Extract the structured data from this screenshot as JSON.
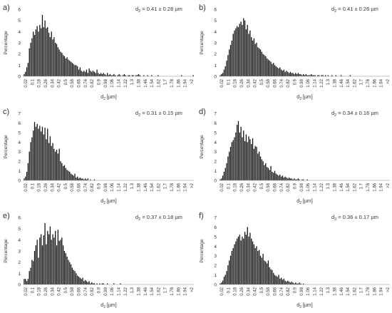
{
  "chart_data": [
    {
      "type": "bar",
      "panel_label": "a)",
      "stat_label": "d",
      "stat_sub": "2",
      "stat_value": " = 0.41 ± 0.28 µm",
      "xlabel_main": "d",
      "xlabel_sub": "2",
      "xlabel_unit": " [µm]",
      "ylabel": "Percentage",
      "ylim": [
        0,
        6
      ],
      "yticks": [
        "0",
        "1",
        "2",
        "3",
        "4",
        "5",
        "6"
      ],
      "xticks": [
        "0.02",
        "0.1",
        "0.18",
        "0.26",
        "0.34",
        "0.42",
        "0.5",
        "0.58",
        "0.66",
        "0.74",
        "0.82",
        "0.9",
        "0.98",
        "1.06",
        "1.14",
        "1.22",
        "1.3",
        "1.38",
        "1.46",
        "1.54",
        "1.62",
        "1.7",
        "1.78",
        "1.86",
        "1.94",
        ">2"
      ],
      "values": [
        0.2,
        0.4,
        0.8,
        1.2,
        2.5,
        3.0,
        3.4,
        4.0,
        3.7,
        4.2,
        4.5,
        4.0,
        4.6,
        4.3,
        5.5,
        4.4,
        5.0,
        4.3,
        4.4,
        3.9,
        3.5,
        4.0,
        3.3,
        3.5,
        3.0,
        2.9,
        2.6,
        2.4,
        2.2,
        2.1,
        1.9,
        1.8,
        1.6,
        1.7,
        1.5,
        1.4,
        1.3,
        1.2,
        1.1,
        1.0,
        1.0,
        0.9,
        0.6,
        0.8,
        0.5,
        0.4,
        0.5,
        0.4,
        0.6,
        0.3,
        0.7,
        0.5,
        0.4,
        0.5,
        0.4,
        0.3,
        0.6,
        0.3,
        0.2,
        0.3,
        0.2,
        0.3,
        0.2,
        0.1,
        0.3,
        0.1,
        0.2,
        0.1,
        0.1,
        0.2,
        0.1,
        0.0,
        0.1,
        0.2,
        0.1,
        0.0,
        0.1,
        0.2,
        0.1,
        0.0,
        0.1,
        0.1,
        0.0,
        0.1,
        0.1,
        0.0,
        0.1,
        0.1,
        0.2,
        0.1,
        0.0,
        0.0,
        0.1,
        0.0,
        0.0,
        0.1,
        0.0,
        0.0,
        0.1,
        0.0,
        0.0,
        0.0,
        0.0,
        0.1,
        0.0,
        0.0,
        0.0,
        0.0,
        0.0,
        0.0,
        0.0,
        0.0,
        0.0,
        0.0,
        0.0,
        0.0,
        0.0,
        0.0,
        0.0,
        0.0,
        0.0,
        0.1,
        0.0,
        0.0,
        0.0,
        0.0,
        0.0,
        0.0,
        0.0,
        0.0,
        0.1
      ]
    },
    {
      "type": "bar",
      "panel_label": "b)",
      "stat_label": "d",
      "stat_sub": "2",
      "stat_value": " = 0.41 ± 0.26 µm",
      "xlabel_main": "d",
      "xlabel_sub": "2",
      "xlabel_unit": " [µm]",
      "ylabel": "Percentage",
      "ylim": [
        0,
        6
      ],
      "yticks": [
        "0",
        "1",
        "2",
        "3",
        "4",
        "5",
        "6"
      ],
      "xticks": [
        "0.02",
        "0.1",
        "0.18",
        "0.26",
        "0.34",
        "0.42",
        "0.5",
        "0.58",
        "0.66",
        "0.74",
        "0.82",
        "0.9",
        "0.98",
        "1.06",
        "1.14",
        "1.22",
        "1.3",
        "1.38",
        "1.46",
        "1.54",
        "1.62",
        "1.7",
        "1.78",
        "1.86",
        "1.94",
        ">2"
      ],
      "values": [
        0.1,
        0.2,
        0.3,
        0.6,
        0.9,
        1.4,
        1.9,
        2.4,
        2.8,
        3.2,
        3.8,
        4.1,
        4.3,
        4.5,
        4.4,
        4.7,
        4.9,
        4.6,
        5.2,
        5.0,
        4.2,
        4.6,
        3.8,
        4.1,
        3.5,
        3.2,
        3.4,
        2.9,
        3.0,
        2.6,
        2.5,
        2.4,
        2.2,
        2.0,
        1.9,
        1.8,
        1.6,
        1.5,
        1.4,
        1.3,
        1.1,
        1.2,
        1.0,
        0.9,
        0.8,
        0.7,
        0.8,
        0.6,
        0.5,
        0.6,
        0.4,
        0.5,
        0.4,
        0.3,
        0.4,
        0.3,
        0.3,
        0.2,
        0.3,
        0.2,
        0.3,
        0.2,
        0.2,
        0.1,
        0.2,
        0.1,
        0.2,
        0.1,
        0.1,
        0.1,
        0.2,
        0.1,
        0.1,
        0.1,
        0.0,
        0.1,
        0.1,
        0.0,
        0.1,
        0.1,
        0.0,
        0.1,
        0.0,
        0.1,
        0.0,
        0.0,
        0.1,
        0.0,
        0.0,
        0.1,
        0.0,
        0.0,
        0.0,
        0.1,
        0.0,
        0.0,
        0.0,
        0.0,
        0.0,
        0.0,
        0.1,
        0.0,
        0.0,
        0.0,
        0.0,
        0.0,
        0.0,
        0.0,
        0.0,
        0.0,
        0.0,
        0.0,
        0.0,
        0.0,
        0.0,
        0.0,
        0.0,
        0.0,
        0.0,
        0.0,
        0.0,
        0.0,
        0.0,
        0.0,
        0.0,
        0.0,
        0.0,
        0.0,
        0.0,
        0.0,
        0.0
      ]
    },
    {
      "type": "bar",
      "panel_label": "c)",
      "stat_label": "d",
      "stat_sub": "2",
      "stat_value": " = 0.31 ± 0.15 µm",
      "xlabel_main": "d",
      "xlabel_sub": "2",
      "xlabel_unit": " [µm]",
      "ylabel": "Percentage",
      "ylim": [
        0,
        7
      ],
      "yticks": [
        "0",
        "1",
        "2",
        "3",
        "4",
        "5",
        "6",
        "7"
      ],
      "xticks": [
        "0.02",
        "0.1",
        "0.18",
        "0.26",
        "0.34",
        "0.42",
        "0.5",
        "0.58",
        "0.66",
        "0.74",
        "0.82",
        "0.9",
        "0.98",
        "1.06",
        "1.14",
        "1.22",
        "1.3",
        "1.38",
        "1.46",
        "1.54",
        "1.62",
        "1.7",
        "1.78",
        "1.86",
        "1.94",
        ">2"
      ],
      "values": [
        0.2,
        0.4,
        0.9,
        1.8,
        3.0,
        4.0,
        4.5,
        5.2,
        6.1,
        5.6,
        5.9,
        5.4,
        5.7,
        5.1,
        5.6,
        4.8,
        5.5,
        4.3,
        5.4,
        3.9,
        4.6,
        3.6,
        3.9,
        3.3,
        3.0,
        3.2,
        2.8,
        3.3,
        2.0,
        1.8,
        1.5,
        1.6,
        1.3,
        1.1,
        1.0,
        0.9,
        0.7,
        0.6,
        0.5,
        0.7,
        0.3,
        0.4,
        0.2,
        0.3,
        0.2,
        0.2,
        0.1,
        0.2,
        0.1,
        0.2,
        0.0,
        0.1,
        0.0,
        0.0,
        0.1,
        0.0,
        0.0,
        0.0,
        0.0,
        0.0,
        0.0,
        0.0,
        0.0,
        0.0,
        0.0,
        0.0,
        0.0,
        0.0,
        0.0,
        0.0,
        0.0,
        0.0,
        0.0,
        0.0,
        0.0,
        0.0,
        0.0,
        0.0,
        0.0,
        0.0,
        0.0,
        0.0,
        0.0,
        0.0,
        0.0,
        0.0,
        0.0,
        0.0,
        0.0,
        0.0,
        0.0,
        0.0,
        0.0,
        0.0,
        0.0,
        0.0,
        0.0,
        0.0,
        0.0,
        0.0,
        0.0,
        0.0,
        0.0,
        0.0,
        0.0,
        0.0,
        0.0,
        0.0,
        0.0,
        0.0,
        0.0,
        0.0,
        0.0,
        0.0,
        0.0,
        0.0,
        0.0,
        0.0,
        0.0,
        0.0,
        0.0,
        0.0,
        0.0,
        0.0,
        0.0,
        0.0,
        0.0,
        0.0,
        0.0,
        0.0,
        0.0
      ]
    },
    {
      "type": "bar",
      "panel_label": "d)",
      "stat_label": "d",
      "stat_sub": "2",
      "stat_value": " = 0.34 ± 0.16 µm",
      "xlabel_main": "d",
      "xlabel_sub": "2",
      "xlabel_unit": " [µm]",
      "ylabel": "Percentage",
      "ylim": [
        0,
        7
      ],
      "yticks": [
        "0",
        "1",
        "2",
        "3",
        "4",
        "5",
        "6",
        "7"
      ],
      "xticks": [
        "0.02",
        "0.1",
        "0.18",
        "0.26",
        "0.34",
        "0.42",
        "0.5",
        "0.58",
        "0.66",
        "0.74",
        "0.82",
        "0.9",
        "0.98",
        "1.06",
        "1.14",
        "1.22",
        "1.3",
        "1.38",
        "1.46",
        "1.54",
        "1.62",
        "1.7",
        "1.78",
        "1.86",
        "1.94",
        ">2"
      ],
      "values": [
        0.1,
        0.2,
        0.5,
        0.9,
        1.3,
        1.8,
        2.5,
        3.0,
        3.5,
        4.0,
        4.2,
        4.5,
        5.0,
        5.8,
        6.2,
        5.0,
        5.6,
        4.5,
        5.2,
        4.1,
        4.8,
        4.0,
        4.6,
        4.3,
        3.8,
        4.4,
        3.3,
        3.6,
        3.5,
        2.8,
        3.0,
        2.5,
        2.2,
        2.0,
        1.6,
        1.8,
        1.4,
        1.3,
        1.1,
        1.5,
        0.9,
        0.8,
        1.0,
        0.7,
        0.6,
        0.5,
        0.6,
        0.4,
        0.5,
        0.3,
        0.4,
        0.3,
        0.2,
        0.3,
        0.2,
        0.2,
        0.1,
        0.2,
        0.1,
        0.1,
        0.2,
        0.1,
        0.0,
        0.1,
        0.1,
        0.0,
        0.0,
        0.1,
        0.0,
        0.0,
        0.0,
        0.0,
        0.0,
        0.0,
        0.0,
        0.0,
        0.0,
        0.0,
        0.0,
        0.0,
        0.0,
        0.0,
        0.0,
        0.0,
        0.0,
        0.0,
        0.0,
        0.0,
        0.0,
        0.0,
        0.0,
        0.0,
        0.0,
        0.0,
        0.0,
        0.0,
        0.0,
        0.0,
        0.0,
        0.0,
        0.0,
        0.0,
        0.0,
        0.0,
        0.0,
        0.0,
        0.0,
        0.0,
        0.0,
        0.0,
        0.0,
        0.0,
        0.0,
        0.0,
        0.0,
        0.0,
        0.0,
        0.0,
        0.0,
        0.0,
        0.0,
        0.0,
        0.0,
        0.0,
        0.0,
        0.0,
        0.0,
        0.0,
        0.0,
        0.0,
        0.0
      ]
    },
    {
      "type": "bar",
      "panel_label": "e)",
      "stat_label": "d",
      "stat_sub": "2",
      "stat_value": " = 0.37 ± 0.18 µm",
      "xlabel_main": "d",
      "xlabel_sub": "2",
      "xlabel_unit": " [µm]",
      "ylabel": "Percentage",
      "ylim": [
        0,
        6
      ],
      "yticks": [
        "0",
        "1",
        "2",
        "3",
        "4",
        "5",
        "6"
      ],
      "xticks": [
        "0.02",
        "0.1",
        "0.18",
        "0.26",
        "0.34",
        "0.42",
        "0.5",
        "0.58",
        "0.66",
        "0.74",
        "0.82",
        "0.9",
        "0.98",
        "1.06",
        "1.14",
        "1.22",
        "1.3",
        "1.38",
        "1.46",
        "1.54",
        "1.62",
        "1.7",
        "1.78",
        "1.86",
        "1.94",
        ">2"
      ],
      "values": [
        0.5,
        0.5,
        0.3,
        0.5,
        1.2,
        1.5,
        2.2,
        2.1,
        3.0,
        3.5,
        4.0,
        2.4,
        4.2,
        4.5,
        3.5,
        4.4,
        5.5,
        3.6,
        4.8,
        4.5,
        5.2,
        4.0,
        4.5,
        4.2,
        4.8,
        3.5,
        4.9,
        3.9,
        4.0,
        4.2,
        3.5,
        3.0,
        2.8,
        2.5,
        2.2,
        2.0,
        1.8,
        1.5,
        1.3,
        1.2,
        1.0,
        0.8,
        0.7,
        0.6,
        0.5,
        0.6,
        0.3,
        0.4,
        0.3,
        0.2,
        0.3,
        0.1,
        0.2,
        0.1,
        0.1,
        0.0,
        0.1,
        0.0,
        0.1,
        0.0,
        0.1,
        0.1,
        0.0,
        0.0,
        0.1,
        0.0,
        0.0,
        0.0,
        0.0,
        0.1,
        0.0,
        0.0,
        0.0,
        0.0,
        0.1,
        0.0,
        0.0,
        0.0,
        0.0,
        0.0,
        0.0,
        0.0,
        0.0,
        0.0,
        0.0,
        0.0,
        0.0,
        0.0,
        0.0,
        0.0,
        0.0,
        0.0,
        0.0,
        0.0,
        0.0,
        0.0,
        0.0,
        0.0,
        0.0,
        0.0,
        0.0,
        0.0,
        0.0,
        0.0,
        0.0,
        0.0,
        0.0,
        0.0,
        0.0,
        0.0,
        0.0,
        0.0,
        0.0,
        0.0,
        0.0,
        0.0,
        0.0,
        0.0,
        0.0,
        0.0,
        0.0,
        0.0,
        0.0,
        0.0,
        0.0,
        0.0,
        0.0,
        0.0,
        0.0,
        0.0,
        0.0
      ]
    },
    {
      "type": "bar",
      "panel_label": "f)",
      "stat_label": "d",
      "stat_sub": "2",
      "stat_value": " = 0.36 ± 0.17 µm",
      "xlabel_main": "d",
      "xlabel_sub": "2",
      "xlabel_unit": " [µm]",
      "ylabel": "Percentage",
      "ylim": [
        0,
        7
      ],
      "yticks": [
        "0",
        "1",
        "2",
        "3",
        "4",
        "5",
        "6",
        "7"
      ],
      "xticks": [
        "0.02",
        "0.1",
        "0.18",
        "0.26",
        "0.34",
        "0.42",
        "0.5",
        "0.58",
        "0.66",
        "0.74",
        "0.82",
        "0.9",
        "0.98",
        "1.06",
        "1.14",
        "1.22",
        "1.3",
        "1.38",
        "1.46",
        "1.54",
        "1.62",
        "1.7",
        "1.78",
        "1.86",
        "1.94",
        ">2"
      ],
      "values": [
        0.1,
        0.2,
        0.4,
        0.8,
        1.0,
        1.4,
        2.0,
        2.5,
        3.0,
        3.5,
        3.8,
        4.2,
        4.5,
        4.8,
        5.0,
        5.2,
        4.6,
        5.0,
        4.8,
        5.5,
        5.2,
        6.0,
        5.0,
        5.4,
        4.8,
        4.5,
        4.2,
        3.8,
        4.0,
        3.5,
        3.6,
        3.0,
        2.8,
        3.2,
        2.5,
        2.4,
        2.2,
        2.5,
        1.8,
        1.6,
        1.5,
        1.2,
        1.0,
        0.9,
        0.8,
        1.0,
        0.6,
        0.7,
        0.5,
        0.6,
        0.4,
        0.3,
        0.4,
        0.3,
        0.2,
        0.3,
        0.2,
        0.1,
        0.2,
        0.1,
        0.1,
        0.2,
        0.1,
        0.0,
        0.1,
        0.0,
        0.0,
        0.0,
        0.0,
        0.0,
        0.0,
        0.0,
        0.0,
        0.0,
        0.0,
        0.0,
        0.0,
        0.0,
        0.0,
        0.0,
        0.0,
        0.0,
        0.0,
        0.0,
        0.0,
        0.0,
        0.0,
        0.0,
        0.0,
        0.0,
        0.0,
        0.0,
        0.0,
        0.0,
        0.0,
        0.0,
        0.0,
        0.0,
        0.0,
        0.0,
        0.0,
        0.0,
        0.0,
        0.0,
        0.0,
        0.0,
        0.0,
        0.0,
        0.0,
        0.0,
        0.0,
        0.0,
        0.0,
        0.0,
        0.0,
        0.0,
        0.0,
        0.0,
        0.0,
        0.0,
        0.0,
        0.0,
        0.0,
        0.0,
        0.0,
        0.0,
        0.0,
        0.0,
        0.0,
        0.0,
        0.0
      ]
    }
  ]
}
